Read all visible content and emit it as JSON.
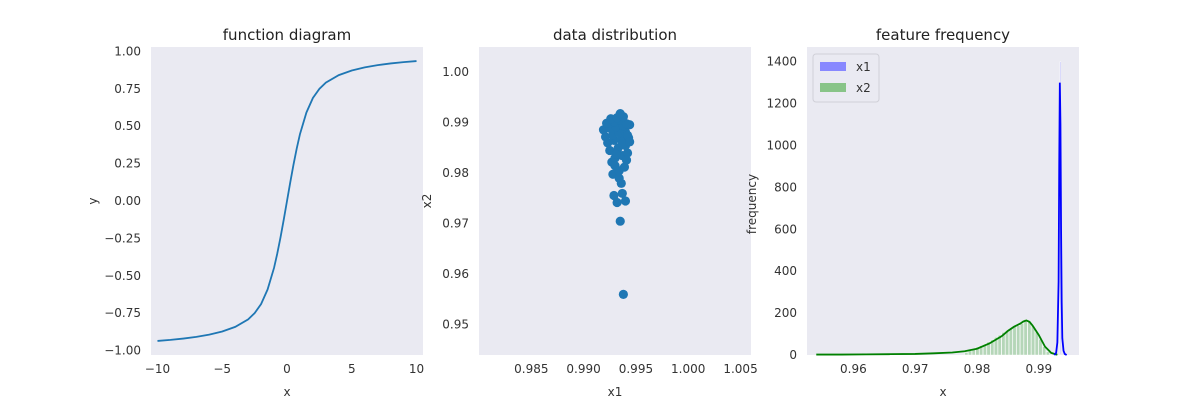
{
  "chart_data": [
    {
      "type": "line",
      "title": "function diagram",
      "xlabel": "x",
      "ylabel": "y",
      "xlim": [
        -10.5,
        10.5
      ],
      "ylim": [
        -1.03,
        1.03
      ],
      "xticks": [
        -10,
        -5,
        0,
        5,
        10
      ],
      "xtick_labels": [
        "−10",
        "−5",
        "0",
        "5",
        "10"
      ],
      "yticks": [
        -1.0,
        -0.75,
        -0.5,
        -0.25,
        0.0,
        0.25,
        0.5,
        0.75,
        1.0
      ],
      "ytick_labels": [
        "−1.00",
        "−0.75",
        "−0.50",
        "−0.25",
        "0.00",
        "0.25",
        "0.50",
        "0.75",
        "1.00"
      ],
      "grid": false,
      "color": "#1f77b4",
      "x": [
        -10,
        -9,
        -8,
        -7,
        -6,
        -5,
        -4,
        -3,
        -2.5,
        -2,
        -1.5,
        -1,
        -0.75,
        -0.5,
        -0.25,
        0,
        0.25,
        0.5,
        0.75,
        1,
        1.5,
        2,
        2.5,
        3,
        4,
        5,
        6,
        7,
        8,
        9,
        10
      ],
      "y": [
        -0.936,
        -0.929,
        -0.92,
        -0.909,
        -0.894,
        -0.873,
        -0.842,
        -0.792,
        -0.75,
        -0.689,
        -0.592,
        -0.447,
        -0.351,
        -0.243,
        -0.124,
        0.0,
        0.124,
        0.243,
        0.351,
        0.447,
        0.592,
        0.689,
        0.75,
        0.792,
        0.842,
        0.873,
        0.894,
        0.909,
        0.92,
        0.929,
        0.936
      ]
    },
    {
      "type": "scatter",
      "title": "data distribution",
      "xlabel": "x1",
      "ylabel": "x2",
      "xlim": [
        0.98,
        1.006
      ],
      "ylim": [
        0.944,
        1.005
      ],
      "xticks": [
        0.985,
        0.99,
        0.995,
        1.0,
        1.005
      ],
      "xtick_labels": [
        "0.985",
        "0.990",
        "0.995",
        "1.000",
        "1.005"
      ],
      "yticks": [
        0.95,
        0.96,
        0.97,
        0.98,
        0.99,
        1.0
      ],
      "ytick_labels": [
        "0.95",
        "0.96",
        "0.97",
        "0.98",
        "0.99",
        "1.00"
      ],
      "grid": false,
      "color": "#1f77b4",
      "points": [
        [
          0.9938,
          0.956
        ],
        [
          0.9935,
          0.9705
        ],
        [
          0.9932,
          0.9742
        ],
        [
          0.9929,
          0.9756
        ],
        [
          0.9937,
          0.976
        ],
        [
          0.994,
          0.9745
        ],
        [
          0.9936,
          0.978
        ],
        [
          0.9928,
          0.9798
        ],
        [
          0.9934,
          0.9805
        ],
        [
          0.9939,
          0.9812
        ],
        [
          0.9927,
          0.9822
        ],
        [
          0.993,
          0.983
        ],
        [
          0.9937,
          0.9835
        ],
        [
          0.9942,
          0.984
        ],
        [
          0.9925,
          0.9845
        ],
        [
          0.9933,
          0.985
        ],
        [
          0.994,
          0.9855
        ],
        [
          0.9923,
          0.986
        ],
        [
          0.9929,
          0.9865
        ],
        [
          0.9936,
          0.9868
        ],
        [
          0.9943,
          0.987
        ],
        [
          0.9921,
          0.9872
        ],
        [
          0.9928,
          0.9876
        ],
        [
          0.9934,
          0.988
        ],
        [
          0.994,
          0.9882
        ],
        [
          0.9919,
          0.9886
        ],
        [
          0.9925,
          0.9889
        ],
        [
          0.9931,
          0.9892
        ],
        [
          0.9938,
          0.9894
        ],
        [
          0.9944,
          0.9896
        ],
        [
          0.9922,
          0.9899
        ],
        [
          0.9929,
          0.9902
        ],
        [
          0.9935,
          0.9905
        ],
        [
          0.9941,
          0.9898
        ],
        [
          0.9926,
          0.9908
        ],
        [
          0.9932,
          0.991
        ],
        [
          0.9938,
          0.9912
        ],
        [
          0.9935,
          0.9918
        ],
        [
          0.9942,
          0.9875
        ],
        [
          0.9937,
          0.9858
        ],
        [
          0.9931,
          0.9838
        ],
        [
          0.9941,
          0.9826
        ],
        [
          0.9934,
          0.979
        ],
        [
          0.993,
          0.9815
        ],
        [
          0.9944,
          0.9862
        ]
      ]
    },
    {
      "type": "histogram",
      "title": "feature frequency",
      "xlabel": "x",
      "ylabel": "frequency",
      "xlim": [
        0.9525,
        0.9965
      ],
      "ylim": [
        0,
        1470
      ],
      "xticks": [
        0.96,
        0.97,
        0.98,
        0.99
      ],
      "xtick_labels": [
        "0.96",
        "0.97",
        "0.98",
        "0.99"
      ],
      "yticks": [
        0,
        200,
        400,
        600,
        800,
        1000,
        1200,
        1400
      ],
      "ytick_labels": [
        "0",
        "200",
        "400",
        "600",
        "800",
        "1000",
        "1200",
        "1400"
      ],
      "grid": false,
      "legend": "top-left",
      "series": [
        {
          "name": "x1",
          "bar_color": "#8888ff",
          "line_color": "#0000ff",
          "bins": [
            [
              0.9932,
              0.9934,
              0
            ],
            [
              0.9934,
              0.9936,
              1400
            ],
            [
              0.9936,
              0.9938,
              0
            ]
          ],
          "kde_x": [
            0.9925,
            0.9928,
            0.993,
            0.9932,
            0.9933,
            0.9934,
            0.9935,
            0.9936,
            0.9937,
            0.9938,
            0.994,
            0.9942,
            0.9945
          ],
          "kde_y": [
            0,
            10,
            60,
            350,
            900,
            1300,
            1100,
            600,
            250,
            80,
            20,
            5,
            0
          ]
        },
        {
          "name": "x2",
          "bar_color": "#88c488",
          "line_color": "#008000",
          "bins": [
            [
              0.978,
              0.9786,
              12
            ],
            [
              0.9786,
              0.9792,
              20
            ],
            [
              0.9792,
              0.9798,
              28
            ],
            [
              0.9798,
              0.9804,
              38
            ],
            [
              0.9804,
              0.981,
              45
            ],
            [
              0.981,
              0.9816,
              52
            ],
            [
              0.9816,
              0.9822,
              62
            ],
            [
              0.9822,
              0.9828,
              72
            ],
            [
              0.9828,
              0.9834,
              85
            ],
            [
              0.9834,
              0.984,
              95
            ],
            [
              0.984,
              0.9846,
              108
            ],
            [
              0.9846,
              0.9852,
              118
            ],
            [
              0.9852,
              0.9858,
              125
            ],
            [
              0.9858,
              0.9864,
              135
            ],
            [
              0.9864,
              0.987,
              140
            ],
            [
              0.987,
              0.9876,
              150
            ],
            [
              0.9876,
              0.9882,
              170
            ],
            [
              0.9882,
              0.9888,
              160
            ],
            [
              0.9888,
              0.9894,
              140
            ],
            [
              0.9894,
              0.99,
              110
            ],
            [
              0.99,
              0.9906,
              75
            ],
            [
              0.9906,
              0.9912,
              40
            ],
            [
              0.9912,
              0.9918,
              15
            ]
          ],
          "kde_x": [
            0.954,
            0.958,
            0.962,
            0.966,
            0.97,
            0.973,
            0.976,
            0.978,
            0.98,
            0.982,
            0.984,
            0.985,
            0.986,
            0.987,
            0.9875,
            0.988,
            0.9885,
            0.989,
            0.99,
            0.991,
            0.992,
            0.993
          ],
          "kde_y": [
            2,
            2,
            3,
            4,
            5,
            8,
            12,
            18,
            30,
            55,
            90,
            115,
            135,
            150,
            160,
            165,
            158,
            140,
            95,
            40,
            10,
            1
          ]
        }
      ]
    }
  ]
}
